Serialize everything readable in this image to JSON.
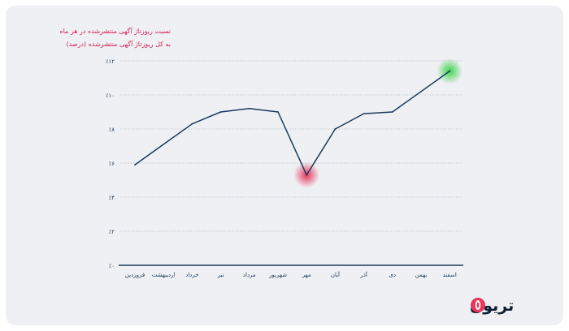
{
  "chart_data": {
    "type": "line",
    "title": "نسبت ریوزتاژ آگهی منتشرشده در هر ماه",
    "subtitle": "به کل ریوزتاژ آگهی منتشرشده (درصد)",
    "categories": [
      "فروردین",
      "اردیبهشت",
      "خرداد",
      "تیر",
      "مرداد",
      "شهریور",
      "مهر",
      "آبان",
      "آذر",
      "دی",
      "بهمن",
      "اسفند"
    ],
    "series": [
      {
        "values": [
          5.9,
          7.1,
          8.3,
          9.0,
          9.2,
          9.0,
          5.3,
          8.0,
          8.9,
          9.0,
          10.2,
          11.4
        ]
      }
    ],
    "y_ticks": [
      "٪۰",
      "٪۲",
      "٪۴",
      "٪۶",
      "٪۸",
      "٪۱۰",
      "٪۱۲"
    ],
    "ylim": [
      0,
      12
    ],
    "grid": true,
    "highlights": [
      {
        "category": "مهر",
        "color": "#e8365d"
      },
      {
        "category": "اسفند",
        "color": "#3fd24a"
      }
    ],
    "line_color": "#1a3a5c",
    "axis_color": "#1a3a5c"
  },
  "brand": {
    "name": "تریون"
  }
}
